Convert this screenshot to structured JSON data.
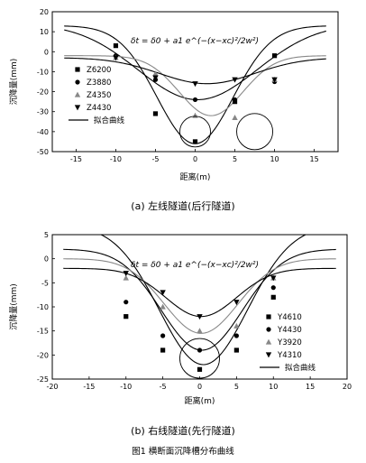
{
  "figure_caption": "图1   横断面沉降槽分布曲线",
  "chart_data": [
    {
      "type": "scatter",
      "caption": "(a)  左线隧道(后行隧道)",
      "xlabel": "距离(m)",
      "ylabel": "沉降量(mm)",
      "xlim": [
        -18,
        18
      ],
      "ylim": [
        -50,
        20
      ],
      "xticks": [
        -15,
        -10,
        -5,
        0,
        5,
        10,
        15
      ],
      "yticks": [
        20,
        10,
        0,
        -10,
        -20,
        -30,
        -40,
        -50
      ],
      "formula": "δt = δ0 + a1 e^(−(x−xc)²/2w²)",
      "legend": [
        "Z6200",
        "Z3880",
        "Z4350",
        "Z4430",
        "拟合曲线"
      ],
      "fit_label": "拟合曲线",
      "series": [
        {
          "name": "Z6200",
          "marker": "square",
          "x": [
            -10,
            -5,
            0,
            5,
            10
          ],
          "y": [
            3,
            -31,
            -45,
            -25,
            -2
          ]
        },
        {
          "name": "Z3880",
          "marker": "circle",
          "x": [
            -10,
            -5,
            0,
            5,
            10
          ],
          "y": [
            -2,
            -14,
            -24,
            -24,
            -15
          ]
        },
        {
          "name": "Z4350",
          "marker": "triangle-up",
          "x": [
            -10,
            -5,
            0,
            5,
            10
          ],
          "y": [
            -3,
            -11,
            -32,
            -33,
            -14
          ]
        },
        {
          "name": "Z4430",
          "marker": "triangle-down",
          "x": [
            -10,
            -5,
            0,
            5,
            10
          ],
          "y": [
            -3,
            -13,
            -16,
            -14,
            -14
          ]
        }
      ],
      "fits": [
        {
          "d0": 13,
          "a1": -59,
          "xc": 0.0,
          "w": 4.8
        },
        {
          "d0": 14,
          "a1": -38,
          "xc": 0.3,
          "w": 7.5
        },
        {
          "d0": -2,
          "a1": -30,
          "xc": 2.0,
          "w": 4.0
        },
        {
          "d0": -3,
          "a1": -13,
          "xc": 1.5,
          "w": 6.0
        }
      ],
      "annotations": [
        {
          "shape": "circle",
          "cx": 0,
          "cy": -40
        },
        {
          "shape": "circle",
          "cx": 7.5,
          "cy": -40
        }
      ]
    },
    {
      "type": "scatter",
      "caption": "(b)  右线隧道(先行隧道)",
      "xlabel": "距离(m)",
      "ylabel": "沉降量(mm)",
      "xlim": [
        -20,
        20
      ],
      "ylim": [
        -25,
        5
      ],
      "xticks": [
        -20,
        -15,
        -10,
        -5,
        0,
        5,
        10,
        15,
        20
      ],
      "yticks": [
        5,
        0,
        -5,
        -10,
        -15,
        -20,
        -25
      ],
      "formula": "δt = δ0 + a1 e^(−(x−xc)²/2w²)",
      "legend": [
        "Y4610",
        "Y4430",
        "Y3920",
        "Y4310",
        "拟合曲线"
      ],
      "fit_label": "拟合曲线",
      "series": [
        {
          "name": "Y4610",
          "marker": "square",
          "x": [
            -10,
            -5,
            0,
            5,
            10
          ],
          "y": [
            -12,
            -19,
            -23,
            -19,
            -8
          ]
        },
        {
          "name": "Y4430",
          "marker": "circle",
          "x": [
            -10,
            -5,
            0,
            5,
            10
          ],
          "y": [
            -9,
            -16,
            -19,
            -16,
            -6
          ]
        },
        {
          "name": "Y3920",
          "marker": "triangle-up",
          "x": [
            -10,
            -5,
            0,
            5,
            10
          ],
          "y": [
            -4,
            -10,
            -15,
            -14,
            -4
          ]
        },
        {
          "name": "Y4310",
          "marker": "triangle-down",
          "x": [
            -10,
            -5,
            0,
            5,
            10
          ],
          "y": [
            -3,
            -7,
            -12,
            -9,
            -4
          ]
        }
      ],
      "fits": [
        {
          "d0": 7,
          "a1": -29,
          "xc": 0.5,
          "w": 6.0
        },
        {
          "d0": 2,
          "a1": -21,
          "xc": 0.3,
          "w": 5.5
        },
        {
          "d0": 0,
          "a1": -15.5,
          "xc": 0.2,
          "w": 5.0
        },
        {
          "d0": -2,
          "a1": -10,
          "xc": 0.2,
          "w": 4.8
        }
      ],
      "annotations": [
        {
          "shape": "circle",
          "cx": 0,
          "cy": -20.7
        }
      ]
    }
  ]
}
